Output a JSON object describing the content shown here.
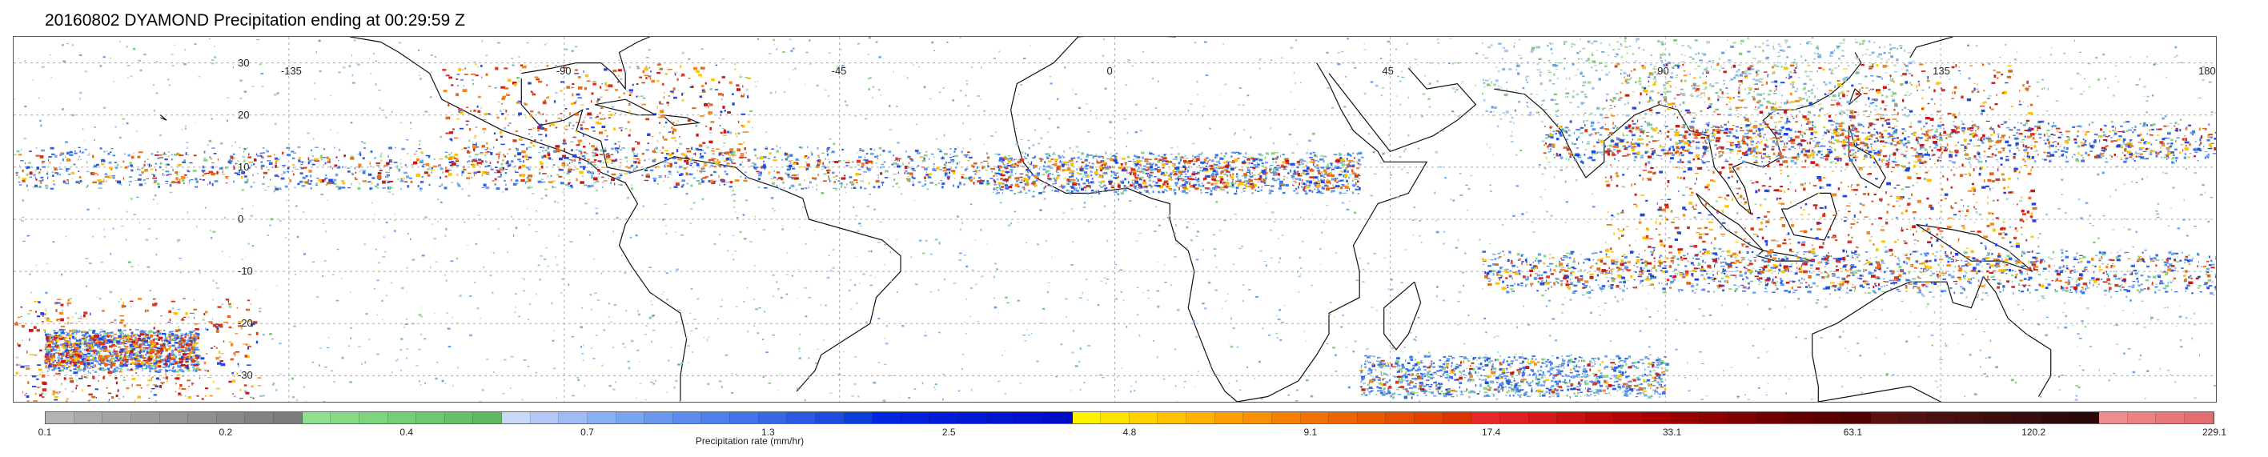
{
  "title": "20160802 DYAMOND Precipitation ending at 00:29:59 Z",
  "map": {
    "projection": "equirectangular",
    "lon_range": [
      -180,
      180
    ],
    "lat_range": [
      -35,
      35
    ],
    "lat_labels": [
      "30",
      "20",
      "10",
      "0",
      "-10",
      "-20",
      "-30"
    ],
    "lon_labels": [
      "-135",
      "-90",
      "-45",
      "0",
      "45",
      "90",
      "135",
      "180"
    ],
    "gridlines": true
  },
  "colorbar": {
    "title": "Precipitation rate (mm/hr)",
    "tick_labels": [
      "0.1",
      "0.2",
      "0.4",
      "0.7",
      "1.3",
      "2.5",
      "4.8",
      "9.1",
      "17.4",
      "33.1",
      "63.1",
      "120.2",
      "229.1"
    ],
    "colors": [
      "#b4b4b4",
      "#aaaaaa",
      "#a4a4a4",
      "#9c9c9c",
      "#969696",
      "#909090",
      "#8a8a8a",
      "#828282",
      "#7c7c7c",
      "#8fe08f",
      "#86dc86",
      "#7dd67d",
      "#75d075",
      "#6ec96e",
      "#66c266",
      "#5eba5e",
      "#c8d8f8",
      "#b4c8f8",
      "#a0bcf6",
      "#8cb0f4",
      "#78a4f2",
      "#6a98f0",
      "#5c8cee",
      "#4e80ec",
      "#4274ea",
      "#3668e6",
      "#2a5ae2",
      "#1c4cde",
      "#0e3ed8",
      "#0026e0",
      "#0020dc",
      "#001cd8",
      "#0018d4",
      "#0014d0",
      "#0010cc",
      "#000cc8",
      "#fff200",
      "#ffe200",
      "#ffd200",
      "#ffc200",
      "#ffb200",
      "#fca000",
      "#f89000",
      "#f48000",
      "#f07200",
      "#ec6600",
      "#e85a00",
      "#e44e00",
      "#e04200",
      "#dc3600",
      "#e82828",
      "#e02020",
      "#d81818",
      "#cc1010",
      "#c00808",
      "#b40404",
      "#a80000",
      "#9a0000",
      "#8c0000",
      "#7e0000",
      "#700000",
      "#660000",
      "#5c0000",
      "#520000",
      "#5a1010",
      "#521010",
      "#4a1010",
      "#421010",
      "#3c0e0e",
      "#360c0c",
      "#300a0a",
      "#2a0808",
      "#f08c8c",
      "#ec8282",
      "#e87878",
      "#e46e6e"
    ]
  },
  "chart_data": {
    "type": "heatmap",
    "title": "20160802 DYAMOND Precipitation ending at 00:29:59 Z",
    "xlabel": "",
    "ylabel": "",
    "colorbar_label": "Precipitation rate (mm/hr)",
    "colorbar_ticks": [
      0.1,
      0.2,
      0.4,
      0.7,
      1.3,
      2.5,
      4.8,
      9.1,
      17.4,
      33.1,
      63.1,
      120.2,
      229.1
    ],
    "xlim": [
      -180,
      180
    ],
    "ylim": [
      -35,
      35
    ],
    "x_ticks": [
      -135,
      -90,
      -45,
      0,
      45,
      90,
      135,
      180
    ],
    "y_ticks": [
      30,
      20,
      10,
      0,
      -10,
      -20,
      -30
    ],
    "precip_bands": [
      {
        "lat": 10,
        "lon_start": -180,
        "lon_end": -20,
        "intensity": 17.4
      },
      {
        "lat": 9,
        "lon_start": -20,
        "lon_end": 40,
        "intensity": 9.1
      },
      {
        "lat": 15,
        "lon_start": 70,
        "lon_end": 180,
        "intensity": 33.1
      },
      {
        "lat": -10,
        "lon_start": 60,
        "lon_end": 180,
        "intensity": 9.1
      },
      {
        "lat": -25,
        "lon_start": -175,
        "lon_end": -150,
        "intensity": 17.4
      },
      {
        "lat": -30,
        "lon_start": 40,
        "lon_end": 90,
        "intensity": 2.5
      }
    ]
  }
}
